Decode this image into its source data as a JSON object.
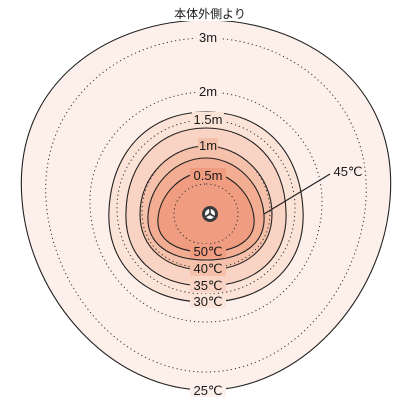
{
  "title": "本体外側より",
  "distance_labels": {
    "d3": "3m",
    "d2": "2m",
    "d15": "1.5m",
    "d1": "1m",
    "d05": "0.5m"
  },
  "temperature_labels": {
    "t25": "25℃",
    "t30": "30℃",
    "t35": "35℃",
    "t40": "40℃",
    "t45": "45℃",
    "t50": "50℃"
  },
  "colors": {
    "zone25": "#fdf0ea",
    "zone30": "#fbe3d8",
    "zone35": "#f9d3c3",
    "zone40": "#f6c1ab",
    "zone45": "#f2ad93",
    "zone50": "#ef9c80",
    "heater_icon": "#3a3a3a"
  }
}
